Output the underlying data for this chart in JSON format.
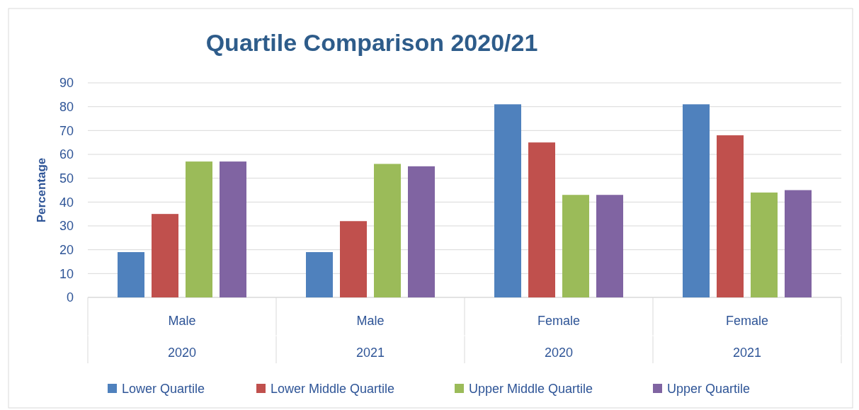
{
  "chart_data": {
    "type": "bar",
    "title": "Quartile Comparison 2020/21",
    "ylabel": "Percentage",
    "categories": [
      "Male\n2020",
      "Male\n2021",
      "Female\n2020",
      "Female\n2021"
    ],
    "series": [
      {
        "name": "Lower Quartile",
        "color": "#4f81bd",
        "values": [
          19,
          19,
          81,
          81
        ]
      },
      {
        "name": "Lower Middle Quartile",
        "color": "#c0504d",
        "values": [
          35,
          32,
          65,
          68
        ]
      },
      {
        "name": "Upper Middle Quartile",
        "color": "#9bbb59",
        "values": [
          57,
          56,
          43,
          44
        ]
      },
      {
        "name": "Upper Quartile",
        "color": "#8064a2",
        "values": [
          57,
          55,
          43,
          45
        ]
      }
    ],
    "ylim": [
      0,
      90
    ],
    "yticks": [
      0,
      10,
      20,
      30,
      40,
      50,
      60,
      70,
      80,
      90
    ],
    "grid": "y",
    "legend": "bottom"
  }
}
